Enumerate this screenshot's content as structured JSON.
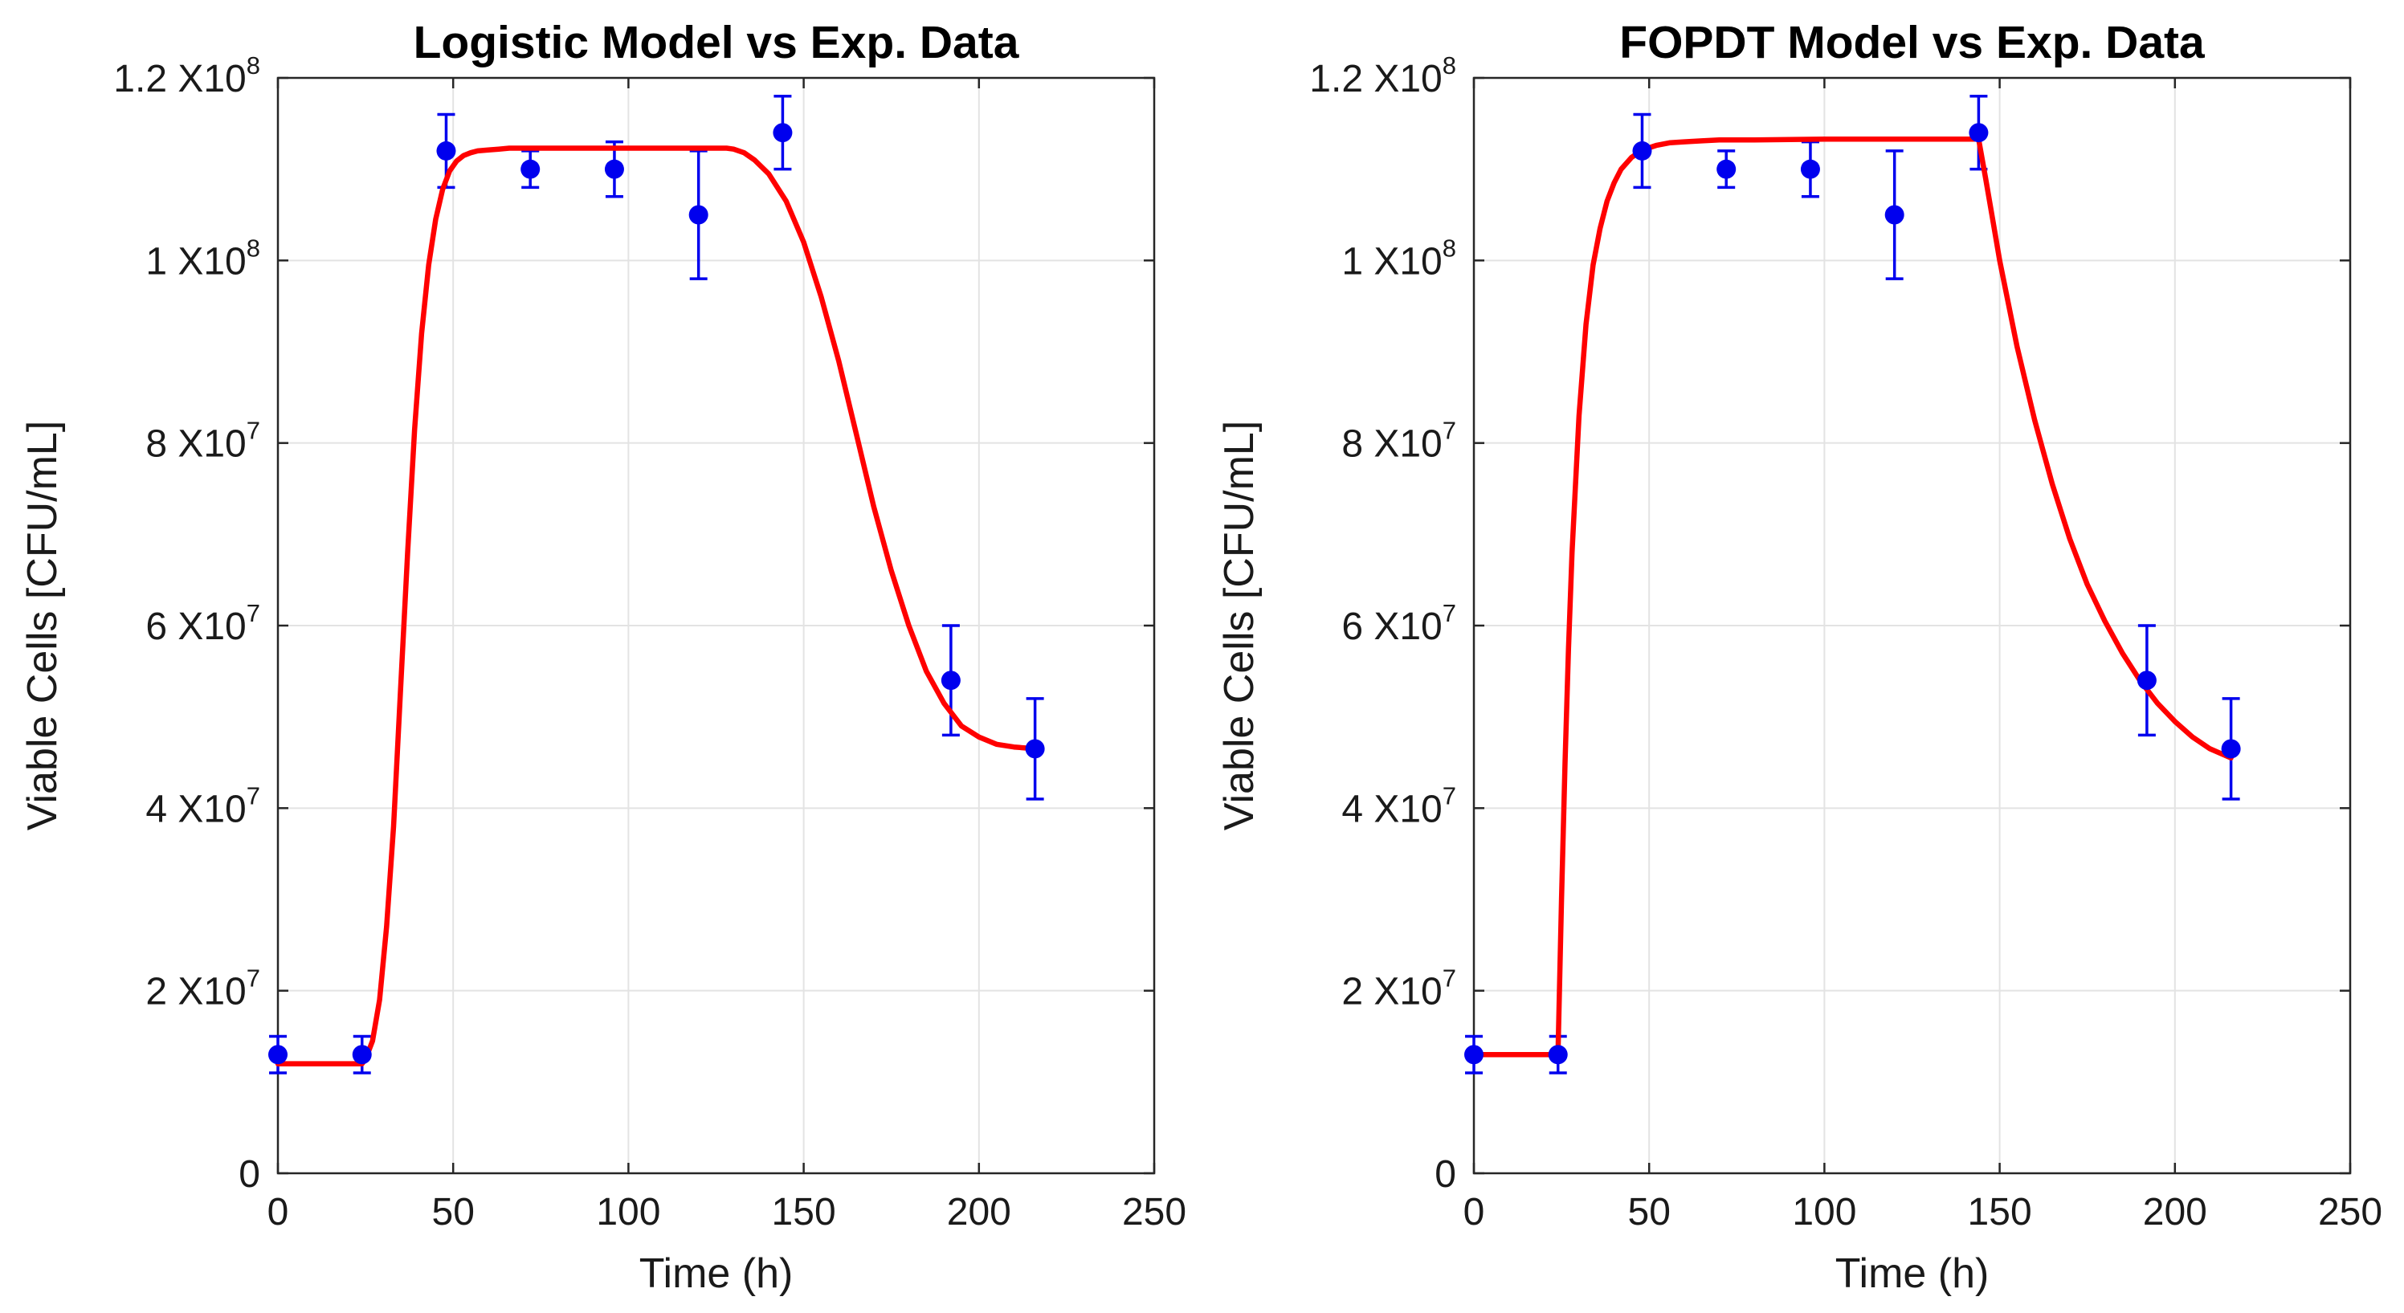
{
  "chart_data": [
    {
      "type": "line",
      "title": "Logistic Model vs Exp. Data",
      "xlabel": "Time (h)",
      "ylabel": "Viable Cells [CFU/mL]",
      "xlim": [
        0,
        250
      ],
      "ylim": [
        0,
        120000000
      ],
      "grid": true,
      "x_ticks": [
        0,
        50,
        100,
        150,
        200,
        250
      ],
      "x_tick_labels": [
        "0",
        "50",
        "100",
        "150",
        "200",
        "250"
      ],
      "y_ticks": [
        {
          "value": 0,
          "mantissa": "0",
          "base": "",
          "exponent": ""
        },
        {
          "value": 20000000,
          "mantissa": "2 ",
          "base": "X10",
          "exponent": "7"
        },
        {
          "value": 40000000,
          "mantissa": "4 ",
          "base": "X10",
          "exponent": "7"
        },
        {
          "value": 60000000,
          "mantissa": "6 ",
          "base": "X10",
          "exponent": "7"
        },
        {
          "value": 80000000,
          "mantissa": "8 ",
          "base": "X10",
          "exponent": "7"
        },
        {
          "value": 100000000,
          "mantissa": "1 ",
          "base": "X10",
          "exponent": "8"
        },
        {
          "value": 120000000,
          "mantissa": "1.2 ",
          "base": "X10",
          "exponent": "8"
        }
      ],
      "series": [
        {
          "name": "Exp. Data",
          "kind": "errorbar",
          "color": "#0000ee",
          "x": [
            0,
            24,
            48,
            72,
            96,
            120,
            144,
            192,
            216
          ],
          "y": [
            13000000,
            13000000,
            112000000,
            110000000,
            110000000,
            105000000,
            114000000,
            54000000,
            46500000
          ],
          "lower": [
            11000000,
            11000000,
            108000000,
            108000000,
            107000000,
            98000000,
            110000000,
            48000000,
            41000000
          ],
          "upper": [
            15000000,
            15000000,
            116000000,
            112000000,
            113000000,
            112000000,
            118000000,
            60000000,
            52000000
          ]
        },
        {
          "name": "Logistic Model",
          "kind": "line",
          "color": "#ff0000",
          "x": [
            0,
            5,
            10,
            15,
            20,
            24,
            25,
            27,
            29,
            31,
            33,
            35,
            37,
            39,
            41,
            43,
            45,
            47,
            49,
            51,
            53,
            55,
            57,
            60,
            63,
            66,
            70,
            75,
            80,
            90,
            100,
            110,
            120,
            125,
            128,
            130,
            133,
            136,
            140,
            145,
            150,
            155,
            160,
            165,
            170,
            175,
            180,
            185,
            190,
            195,
            200,
            205,
            210,
            216
          ],
          "y": [
            12000000,
            12000000,
            12000000,
            12000000,
            12000000,
            12000000,
            12500000,
            14500000,
            19000000,
            27000000,
            38000000,
            53000000,
            68000000,
            81500000,
            92000000,
            99500000,
            104500000,
            107800000,
            109800000,
            110900000,
            111500000,
            111800000,
            112000000,
            112100000,
            112200000,
            112300000,
            112300000,
            112300000,
            112300000,
            112300000,
            112300000,
            112300000,
            112300000,
            112300000,
            112300000,
            112200000,
            111800000,
            111000000,
            109500000,
            106500000,
            102000000,
            96000000,
            89000000,
            81000000,
            73000000,
            66000000,
            60000000,
            55000000,
            51500000,
            49000000,
            47800000,
            47000000,
            46700000,
            46500000
          ]
        }
      ]
    },
    {
      "type": "line",
      "title": "FOPDT Model vs Exp. Data",
      "xlabel": "Time (h)",
      "ylabel": "Viable Cells [CFU/mL]",
      "xlim": [
        0,
        250
      ],
      "ylim": [
        0,
        120000000
      ],
      "grid": true,
      "x_ticks": [
        0,
        50,
        100,
        150,
        200,
        250
      ],
      "x_tick_labels": [
        "0",
        "50",
        "100",
        "150",
        "200",
        "250"
      ],
      "y_ticks": [
        {
          "value": 0,
          "mantissa": "0",
          "base": "",
          "exponent": ""
        },
        {
          "value": 20000000,
          "mantissa": "2 ",
          "base": "X10",
          "exponent": "7"
        },
        {
          "value": 40000000,
          "mantissa": "4 ",
          "base": "X10",
          "exponent": "7"
        },
        {
          "value": 60000000,
          "mantissa": "6 ",
          "base": "X10",
          "exponent": "7"
        },
        {
          "value": 80000000,
          "mantissa": "8 ",
          "base": "X10",
          "exponent": "7"
        },
        {
          "value": 100000000,
          "mantissa": "1 ",
          "base": "X10",
          "exponent": "8"
        },
        {
          "value": 120000000,
          "mantissa": "1.2 ",
          "base": "X10",
          "exponent": "8"
        }
      ],
      "series": [
        {
          "name": "Exp. Data",
          "kind": "errorbar",
          "color": "#0000ee",
          "x": [
            0,
            24,
            48,
            72,
            96,
            120,
            144,
            192,
            216
          ],
          "y": [
            13000000,
            13000000,
            112000000,
            110000000,
            110000000,
            105000000,
            114000000,
            54000000,
            46500000
          ],
          "lower": [
            11000000,
            11000000,
            108000000,
            108000000,
            107000000,
            98000000,
            110000000,
            48000000,
            41000000
          ],
          "upper": [
            15000000,
            15000000,
            116000000,
            112000000,
            113000000,
            112000000,
            118000000,
            60000000,
            52000000
          ]
        },
        {
          "name": "FOPDT Model",
          "kind": "line",
          "color": "#ff0000",
          "x": [
            0,
            5,
            10,
            15,
            20,
            24,
            25,
            26,
            27,
            28,
            30,
            32,
            34,
            36,
            38,
            40,
            42,
            45,
            48,
            52,
            56,
            60,
            65,
            70,
            80,
            100,
            120,
            140,
            144,
            146,
            148,
            150,
            155,
            160,
            165,
            170,
            175,
            180,
            185,
            190,
            195,
            200,
            205,
            210,
            216
          ],
          "y": [
            13000000,
            13000000,
            13000000,
            13000000,
            13000000,
            13000000,
            30000000,
            45000000,
            57500000,
            68000000,
            83000000,
            93000000,
            99500000,
            103500000,
            106500000,
            108500000,
            110000000,
            111300000,
            112100000,
            112600000,
            112900000,
            113000000,
            113100000,
            113200000,
            113200000,
            113300000,
            113300000,
            113300000,
            113300000,
            109000000,
            104500000,
            100000000,
            90500000,
            82500000,
            75500000,
            69500000,
            64500000,
            60500000,
            57000000,
            54000000,
            51500000,
            49500000,
            47800000,
            46500000,
            45500000
          ]
        }
      ]
    }
  ]
}
